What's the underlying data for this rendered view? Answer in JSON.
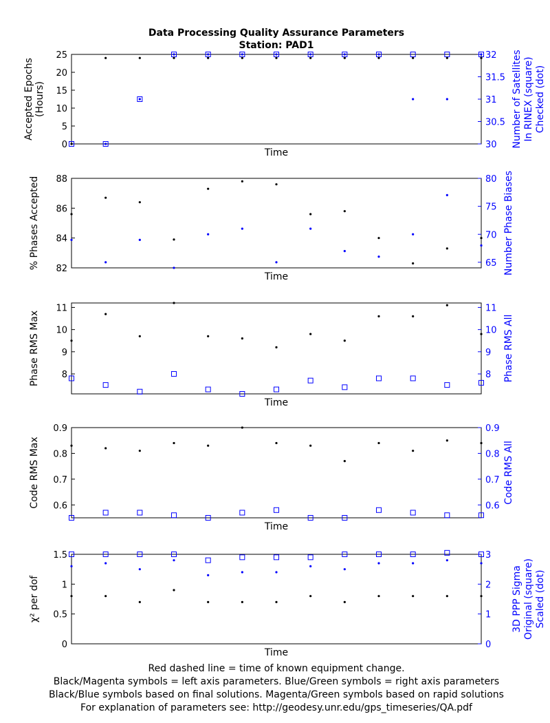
{
  "title": "Data Processing Quality Assurance Parameters",
  "subtitle": "Station: PAD1",
  "footer": [
    "Red dashed line = time of known equipment change.",
    "Black/Magenta symbols = left axis parameters. Blue/Green symbols = right axis parameters",
    "Black/Blue symbols based on final solutions.  Magenta/Green symbols based on rapid solutions",
    "For explanation of parameters see: http://geodesy.unr.edu/gps_timeseries/QA.pdf"
  ],
  "colors": {
    "left": "#000000",
    "right": "#0000ff",
    "axis": "#000000"
  },
  "chart_data": [
    {
      "type": "scatter",
      "xlabel": "Time",
      "ylabel_left": [
        "Accepted Epochs",
        "(Hours)"
      ],
      "ylabel_right": [
        "Number of Satellites",
        "In RINEX (square)",
        "Checked (dot)"
      ],
      "ylim_left": [
        0,
        25
      ],
      "ylim_right": [
        30,
        32
      ],
      "yticks_left": [
        "0",
        "5",
        "10",
        "15",
        "20",
        "25"
      ],
      "ytick_values_left": [
        0,
        5,
        10,
        15,
        20,
        25
      ],
      "yticks_right": [
        "30",
        "30.5",
        "31",
        "31.5",
        "32"
      ],
      "ytick_values_right": [
        30,
        30.5,
        31,
        31.5,
        32
      ],
      "x": [
        0,
        1,
        2,
        3,
        4,
        5,
        6,
        7,
        8,
        9,
        10,
        11,
        12
      ],
      "left_dot": [
        0,
        24,
        24,
        24,
        24,
        24,
        24,
        24,
        24,
        24,
        24,
        24,
        24
      ],
      "right_square": [
        30,
        30,
        31,
        32,
        32,
        32,
        32,
        32,
        32,
        32,
        32,
        32,
        32
      ],
      "right_dot": [
        30,
        30,
        31,
        32,
        32,
        32,
        32,
        32,
        32,
        32,
        31,
        31,
        32
      ]
    },
    {
      "type": "scatter",
      "xlabel": "Time",
      "ylabel_left": [
        "% Phases Accepted"
      ],
      "ylabel_right": [
        "Number Phase Biases"
      ],
      "ylim_left": [
        82,
        88
      ],
      "ylim_right": [
        64,
        80
      ],
      "yticks_left": [
        "82",
        "84",
        "86",
        "88"
      ],
      "ytick_values_left": [
        82,
        84,
        86,
        88
      ],
      "yticks_right": [
        "65",
        "70",
        "75",
        "80"
      ],
      "ytick_values_right": [
        65,
        70,
        75,
        80
      ],
      "x": [
        0,
        1,
        2,
        3,
        4,
        5,
        6,
        7,
        8,
        9,
        10,
        11,
        12
      ],
      "left_dot": [
        85.6,
        86.7,
        86.4,
        83.9,
        87.3,
        87.8,
        87.6,
        85.6,
        85.8,
        84.0,
        82.3,
        83.3,
        84.0
      ],
      "right_dot": [
        69,
        65,
        69,
        64,
        70,
        71,
        65,
        71,
        67,
        66,
        70,
        77,
        68
      ]
    },
    {
      "type": "scatter",
      "xlabel": "Time",
      "ylabel_left": [
        "Phase RMS Max"
      ],
      "ylabel_right": [
        "Phase RMS All"
      ],
      "ylim_left": [
        7.1,
        11.2
      ],
      "ylim_right": [
        7.1,
        11.2
      ],
      "yticks_left": [
        "8",
        "9",
        "10",
        "11"
      ],
      "ytick_values_left": [
        8,
        9,
        10,
        11
      ],
      "yticks_right": [
        "8",
        "9",
        "10",
        "11"
      ],
      "ytick_values_right": [
        8,
        9,
        10,
        11
      ],
      "x": [
        0,
        1,
        2,
        3,
        4,
        5,
        6,
        7,
        8,
        9,
        10,
        11,
        12
      ],
      "left_dot": [
        9.5,
        10.7,
        9.7,
        11.2,
        9.7,
        9.6,
        9.2,
        9.8,
        9.5,
        10.6,
        10.6,
        11.1,
        9.8
      ],
      "right_square": [
        7.8,
        7.5,
        7.2,
        8.0,
        7.3,
        7.1,
        7.3,
        7.7,
        7.4,
        7.8,
        7.8,
        7.5,
        7.6
      ]
    },
    {
      "type": "scatter",
      "xlabel": "Time",
      "ylabel_left": [
        "Code RMS Max"
      ],
      "ylabel_right": [
        "Code RMS All"
      ],
      "ylim_left": [
        0.55,
        0.9
      ],
      "ylim_right": [
        0.55,
        0.9
      ],
      "yticks_left": [
        "0.6",
        "0.7",
        "0.8",
        "0.9"
      ],
      "ytick_values_left": [
        0.6,
        0.7,
        0.8,
        0.9
      ],
      "yticks_right": [
        "0.6",
        "0.7",
        "0.8",
        "0.9"
      ],
      "ytick_values_right": [
        0.6,
        0.7,
        0.8,
        0.9
      ],
      "x": [
        0,
        1,
        2,
        3,
        4,
        5,
        6,
        7,
        8,
        9,
        10,
        11,
        12
      ],
      "left_dot": [
        0.83,
        0.82,
        0.81,
        0.84,
        0.83,
        0.9,
        0.84,
        0.83,
        0.77,
        0.84,
        0.81,
        0.85,
        0.84
      ],
      "right_square": [
        0.55,
        0.57,
        0.57,
        0.56,
        0.55,
        0.57,
        0.58,
        0.55,
        0.55,
        0.58,
        0.57,
        0.56,
        0.56
      ]
    },
    {
      "type": "scatter",
      "xlabel": "Time",
      "ylabel_left": [
        "χ² per dof"
      ],
      "ylabel_right": [
        "3D PPP Sigma",
        "Original (square)",
        "Scaled (dot)"
      ],
      "ylim_left": [
        0,
        1.5
      ],
      "ylim_right": [
        0,
        3
      ],
      "yticks_left": [
        "0",
        "0.5",
        "1",
        "1.5"
      ],
      "ytick_values_left": [
        0,
        0.5,
        1,
        1.5
      ],
      "yticks_right": [
        "0",
        "1",
        "2",
        "3"
      ],
      "ytick_values_right": [
        0,
        1,
        2,
        3
      ],
      "x": [
        0,
        1,
        2,
        3,
        4,
        5,
        6,
        7,
        8,
        9,
        10,
        11,
        12
      ],
      "left_dot": [
        0.8,
        0.8,
        0.7,
        0.9,
        0.7,
        0.7,
        0.7,
        0.8,
        0.7,
        0.8,
        0.8,
        0.8,
        0.8
      ],
      "right_square": [
        3.0,
        3.0,
        3.0,
        3.0,
        2.8,
        2.9,
        2.9,
        2.9,
        3.0,
        3.0,
        3.0,
        3.05,
        3.0
      ],
      "right_dot": [
        2.6,
        2.7,
        2.5,
        2.8,
        2.3,
        2.4,
        2.4,
        2.6,
        2.5,
        2.7,
        2.7,
        2.8,
        2.7
      ]
    }
  ]
}
